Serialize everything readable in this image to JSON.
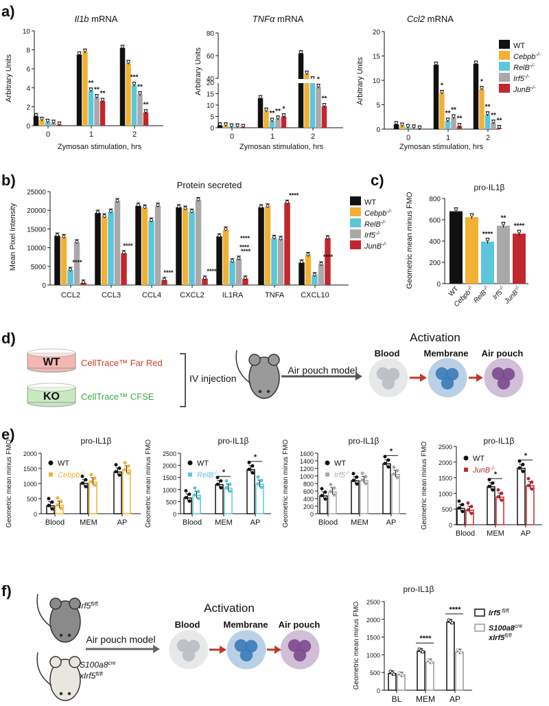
{
  "colors": {
    "WT": "#111111",
    "Cebpb": "#f2b134",
    "RelB": "#5bc6dc",
    "Irf5": "#a9a9a9",
    "JunB": "#c0282e",
    "cfr": "#d03a32",
    "cfse": "#3aa845",
    "membrane": "#3b7ab8",
    "pouch": "#7b4a8e",
    "blood": "#b9bec4",
    "arrow": "#c0392b"
  },
  "panels": {
    "a": "a)",
    "b": "b)",
    "c": "c)",
    "d": "d)",
    "e": "e)",
    "f": "f)"
  },
  "genotypes": [
    "WT",
    "Cebpb-/-",
    "RelB-/-",
    "Irf5-/-",
    "JunB-/-"
  ],
  "panel_a": {
    "charts": [
      {
        "title": "Il1b",
        "title_suffix": " mRNA",
        "ylabel": "Arbitrary Units",
        "xlabel": "Zymosan stimulation, hrs",
        "ticks": [
          "0",
          "2",
          "4",
          "6",
          "8",
          "10"
        ],
        "groups": [
          "0",
          "1",
          "2"
        ],
        "stars": [
          [
            "",
            "",
            "",
            "",
            ""
          ],
          [
            "",
            "",
            "**",
            "**",
            "**"
          ],
          [
            "",
            "",
            "***",
            "**",
            "**"
          ]
        ]
      },
      {
        "title": "TNFα",
        "title_suffix": " mRNA",
        "ylabel": "Arbitrary Units",
        "xlabel": "Zymosan stimulation, hrs",
        "ticks_low": [
          "0",
          "5",
          "10",
          "15",
          "20"
        ],
        "ticks_high": [
          "40",
          "60",
          "80"
        ],
        "groups": [
          "0",
          "1",
          "2"
        ],
        "stars": [
          [
            "",
            "",
            "",
            "",
            ""
          ],
          [
            "",
            "",
            "**",
            "**",
            "*"
          ],
          [
            "",
            "",
            "",
            "*",
            "**"
          ]
        ]
      },
      {
        "title": "Ccl2",
        "title_suffix": " mRNA",
        "ylabel": "Arbitrary Units",
        "xlabel": "Zymosan stimulation, hrs",
        "ticks": [
          "0",
          "5",
          "10",
          "15",
          "20"
        ],
        "groups": [
          "0",
          "1",
          "2"
        ],
        "stars": [
          [
            "",
            "",
            "",
            "",
            ""
          ],
          [
            "",
            "*",
            "**",
            "**",
            "**"
          ],
          [
            "",
            "*",
            "**",
            "**",
            "**"
          ]
        ]
      }
    ]
  },
  "panel_b": {
    "title": "Protein secreted",
    "ylabel": "Mean Pixel Intensity",
    "ticks": [
      "0",
      "5000",
      "10000",
      "15000",
      "20000",
      "25000"
    ],
    "categories": [
      "CCL2",
      "CCL3",
      "CCL4",
      "CXCL2",
      "IL1RA",
      "TNFA",
      "CXCL10"
    ],
    "stars": [
      "****",
      "****",
      "****",
      "****",
      "****",
      "****",
      "****"
    ],
    "stars_il1ra_extra": [
      "****",
      "****"
    ]
  },
  "panel_c": {
    "title": "pro-IL1β",
    "ylabel": "Geometric mean minus FMO",
    "ticks": [
      "0",
      "200",
      "400",
      "600",
      "800"
    ],
    "stars": [
      "",
      "",
      "****",
      "**",
      "****"
    ]
  },
  "panel_d": {
    "wt": "WT",
    "ko": "KO",
    "cfr": "CellTrace™ Far Red",
    "cfse": "CellTrace™ CFSE",
    "iv": "IV injection",
    "model": "Air pouch model",
    "activation": "Activation",
    "stages": [
      "Blood",
      "Membrane",
      "Air pouch"
    ]
  },
  "panel_e": {
    "title": "pro-IL1β",
    "ylabel": "Geometric mean minus FMO",
    "groups": [
      "Blood",
      "MEM",
      "AP"
    ],
    "charts": [
      {
        "ko": "Cebpb",
        "ko_sup": "-/-",
        "ticks": [
          "0",
          "500",
          "1000",
          "1500",
          "2000"
        ],
        "stars": [
          "",
          "",
          ""
        ]
      },
      {
        "ko": "RelB",
        "ko_sup": "-/-",
        "ticks": [
          "0",
          "500",
          "1000",
          "1500",
          "2000",
          "2500"
        ],
        "stars": [
          "",
          "*",
          "*"
        ]
      },
      {
        "ko": "Irf5",
        "ko_sup": "-/-",
        "ticks": [
          "0",
          "200",
          "400",
          "600",
          "800",
          "1000",
          "1200",
          "1400",
          "1600"
        ],
        "stars": [
          "",
          "",
          "*"
        ]
      },
      {
        "ko": "JunB",
        "ko_sup": "-/-",
        "ticks": [
          "0",
          "500",
          "1000",
          "1500",
          "2000",
          "2500"
        ],
        "stars": [
          "",
          "*",
          "*"
        ]
      }
    ]
  },
  "panel_f": {
    "mouse1": "Irf5",
    "mouse1_sup": "fl/fl",
    "mouse2a": "S100a8",
    "mouse2a_sup": "cre",
    "mouse2b": "xIrf5",
    "mouse2b_sup": "fl/fl",
    "model": "Air pouch model",
    "activation": "Activation",
    "stages": [
      "Blood",
      "Membrane",
      "Air pouch"
    ],
    "title": "pro-IL1β",
    "ylabel": "Geometric mean minus FMO",
    "ticks": [
      "0",
      "500",
      "1000",
      "1500",
      "2000",
      "2500"
    ],
    "groups": [
      "BL",
      "MEM",
      "AP"
    ],
    "stars": [
      "",
      "****",
      "****"
    ],
    "legend": [
      {
        "a": "Irf5",
        "sup": " fl/fl"
      },
      {
        "a": "S100a8",
        "sup": "cre"
      },
      {
        "a": "xIrf5",
        "sup": "fl/fl"
      }
    ]
  },
  "chart_data": [
    {
      "type": "bar",
      "panel": "a",
      "title": "Il1b mRNA",
      "xlabel": "Zymosan stimulation, hrs",
      "ylabel": "Arbitrary Units",
      "ylim": [
        0,
        10
      ],
      "categories": [
        "0",
        "1",
        "2"
      ],
      "series": [
        {
          "name": "WT",
          "values": [
            1.0,
            7.5,
            8.2
          ]
        },
        {
          "name": "Cebpb-/-",
          "values": [
            0.6,
            7.8,
            6.6
          ]
        },
        {
          "name": "RelB-/-",
          "values": [
            0.4,
            3.7,
            4.3
          ]
        },
        {
          "name": "Irf5-/-",
          "values": [
            0.3,
            3.0,
            3.3
          ]
        },
        {
          "name": "JunB-/-",
          "values": [
            0.1,
            2.6,
            1.4
          ]
        }
      ]
    },
    {
      "type": "bar",
      "panel": "a",
      "title": "TNFα mRNA",
      "xlabel": "Zymosan stimulation, hrs",
      "ylabel": "Arbitrary Units",
      "ylim": [
        0,
        80
      ],
      "axis_break": [
        20,
        40
      ],
      "categories": [
        "0",
        "1",
        "2"
      ],
      "series": [
        {
          "name": "WT",
          "values": [
            1.0,
            13.0,
            62
          ]
        },
        {
          "name": "Cebpb-/-",
          "values": [
            1.0,
            7.5,
            44
          ]
        },
        {
          "name": "RelB-/-",
          "values": [
            0.5,
            3.0,
            39
          ]
        },
        {
          "name": "Irf5-/-",
          "values": [
            0.5,
            4.0,
            18
          ]
        },
        {
          "name": "JunB-/-",
          "values": [
            0.3,
            5.0,
            9.5
          ]
        }
      ]
    },
    {
      "type": "bar",
      "panel": "a",
      "title": "Ccl2 mRNA",
      "xlabel": "Zymosan stimulation, hrs",
      "ylabel": "Arbitrary Units",
      "ylim": [
        0,
        20
      ],
      "categories": [
        "0",
        "1",
        "2"
      ],
      "series": [
        {
          "name": "WT",
          "values": [
            1.0,
            13.2,
            13.4
          ]
        },
        {
          "name": "Cebpb-/-",
          "values": [
            0.7,
            7.4,
            8.2
          ]
        },
        {
          "name": "RelB-/-",
          "values": [
            0.4,
            1.7,
            3.0
          ]
        },
        {
          "name": "Irf5-/-",
          "values": [
            0.3,
            2.4,
            1.3
          ]
        },
        {
          "name": "JunB-/-",
          "values": [
            0.1,
            0.6,
            0.2
          ]
        }
      ]
    },
    {
      "type": "bar",
      "panel": "b",
      "title": "Protein secreted",
      "ylabel": "Mean Pixel Intensity",
      "ylim": [
        0,
        25000
      ],
      "categories": [
        "CCL2",
        "CCL3",
        "CCL4",
        "CXCL2",
        "IL1RA",
        "TNFA",
        "CXCL10"
      ],
      "series": [
        {
          "name": "WT",
          "values": [
            13200,
            19300,
            21200,
            20800,
            13000,
            20800,
            6000
          ]
        },
        {
          "name": "Cebpb-/-",
          "values": [
            12800,
            18300,
            20700,
            20400,
            14800,
            21000,
            8000
          ]
        },
        {
          "name": "RelB-/-",
          "values": [
            4000,
            19600,
            17200,
            19600,
            6300,
            12600,
            2600
          ]
        },
        {
          "name": "Irf5-/-",
          "values": [
            11400,
            22400,
            21200,
            22700,
            7000,
            12300,
            5500
          ]
        },
        {
          "name": "JunB-/-",
          "values": [
            600,
            8500,
            1300,
            1700,
            1700,
            22000,
            12500
          ]
        }
      ]
    },
    {
      "type": "bar",
      "panel": "c",
      "title": "pro-IL1β",
      "ylabel": "Geometric mean minus FMO",
      "ylim": [
        0,
        800
      ],
      "categories": [
        "WT",
        "Cebpb-/-",
        "RelB-/-",
        "Irf5-/-",
        "JunB-/-"
      ],
      "values": [
        680,
        625,
        395,
        545,
        470
      ]
    },
    {
      "type": "bar",
      "panel": "e",
      "title": "pro-IL1β",
      "ylabel": "Geometric mean minus FMO",
      "ylim": [
        0,
        2000
      ],
      "categories": [
        "Blood",
        "MEM",
        "AP"
      ],
      "series": [
        {
          "name": "WT",
          "values": [
            260,
            1000,
            1380
          ]
        },
        {
          "name": "Cebpb-/-",
          "values": [
            280,
            1050,
            1450
          ]
        }
      ]
    },
    {
      "type": "bar",
      "panel": "e",
      "title": "pro-IL1β",
      "ylabel": "Geometric mean minus FMO",
      "ylim": [
        0,
        2500
      ],
      "categories": [
        "Blood",
        "MEM",
        "AP"
      ],
      "series": [
        {
          "name": "WT",
          "values": [
            650,
            1200,
            1820
          ]
        },
        {
          "name": "RelB-/-",
          "values": [
            760,
            1060,
            1220
          ]
        }
      ]
    },
    {
      "type": "bar",
      "panel": "e",
      "title": "pro-IL1β",
      "ylabel": "Geometric mean minus FMO",
      "ylim": [
        0,
        1600
      ],
      "categories": [
        "Blood",
        "MEM",
        "AP"
      ],
      "series": [
        {
          "name": "WT",
          "values": [
            470,
            870,
            1320
          ]
        },
        {
          "name": "Irf5-/-",
          "values": [
            580,
            880,
            1040
          ]
        }
      ]
    },
    {
      "type": "bar",
      "panel": "e",
      "title": "pro-IL1β",
      "ylabel": "Geometric mean minus FMO",
      "ylim": [
        0,
        2500
      ],
      "categories": [
        "Blood",
        "MEM",
        "AP"
      ],
      "series": [
        {
          "name": "WT",
          "values": [
            520,
            1210,
            1800
          ]
        },
        {
          "name": "JunB-/-",
          "values": [
            460,
            880,
            1240
          ]
        }
      ]
    },
    {
      "type": "bar",
      "panel": "f",
      "title": "pro-IL1β",
      "ylabel": "Geometric mean minus FMO",
      "ylim": [
        0,
        2500
      ],
      "categories": [
        "BL",
        "MEM",
        "AP"
      ],
      "series": [
        {
          "name": "Irf5 fl/fl",
          "values": [
            470,
            1100,
            1920
          ]
        },
        {
          "name": "S100a8cre xIrf5fl/fl",
          "values": [
            430,
            800,
            1080
          ]
        }
      ]
    }
  ]
}
